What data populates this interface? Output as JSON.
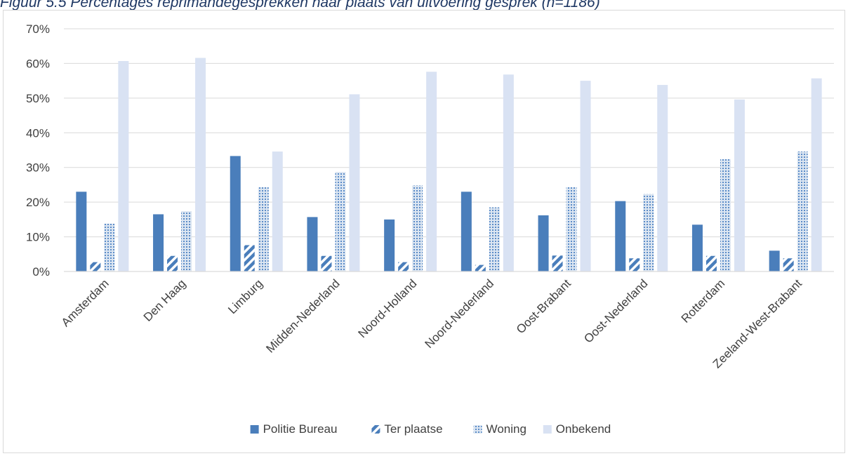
{
  "caption": "Figuur 5.5 Percentages reprimandegesprekken naar plaats van uitvoering gesprek (n=1186)",
  "chart_data": {
    "type": "bar",
    "title": "",
    "xlabel": "",
    "ylabel": "",
    "ylim": [
      0,
      70
    ],
    "yticks": [
      "0%",
      "10%",
      "20%",
      "30%",
      "40%",
      "50%",
      "60%",
      "70%"
    ],
    "grid": true,
    "legend_position": "bottom",
    "categories": [
      "Amsterdam",
      "Den Haag",
      "Limburg",
      "Midden-Nederland",
      "Noord-Holland",
      "Noord-Nederland",
      "Oost-Brabant",
      "Oost-Nederland",
      "Rotterdam",
      "Zeeland-West-Brabant"
    ],
    "series": [
      {
        "name": "Politie Bureau",
        "color": "#4a7ebb",
        "pattern": "solid",
        "values": [
          23,
          16.5,
          33.3,
          15.7,
          15,
          23,
          16.2,
          20.3,
          13.5,
          6
        ]
      },
      {
        "name": "Ter plaatse",
        "color": "#4a7ebb",
        "pattern": "diagonal",
        "values": [
          2.7,
          4.5,
          7.6,
          4.5,
          2.7,
          1.9,
          4.6,
          3.8,
          4.5,
          3.8
        ]
      },
      {
        "name": "Woning",
        "color": "#4a7ebb",
        "pattern": "dots",
        "values": [
          13.8,
          17.4,
          24.3,
          28.7,
          24.8,
          18.5,
          24.3,
          22.3,
          32.4,
          34.6
        ]
      },
      {
        "name": "Onbekend",
        "color": "#d9e2f3",
        "pattern": "solid",
        "values": [
          60.7,
          61.6,
          34.6,
          51.1,
          57.6,
          56.8,
          55,
          53.8,
          49.6,
          55.7
        ]
      }
    ]
  }
}
